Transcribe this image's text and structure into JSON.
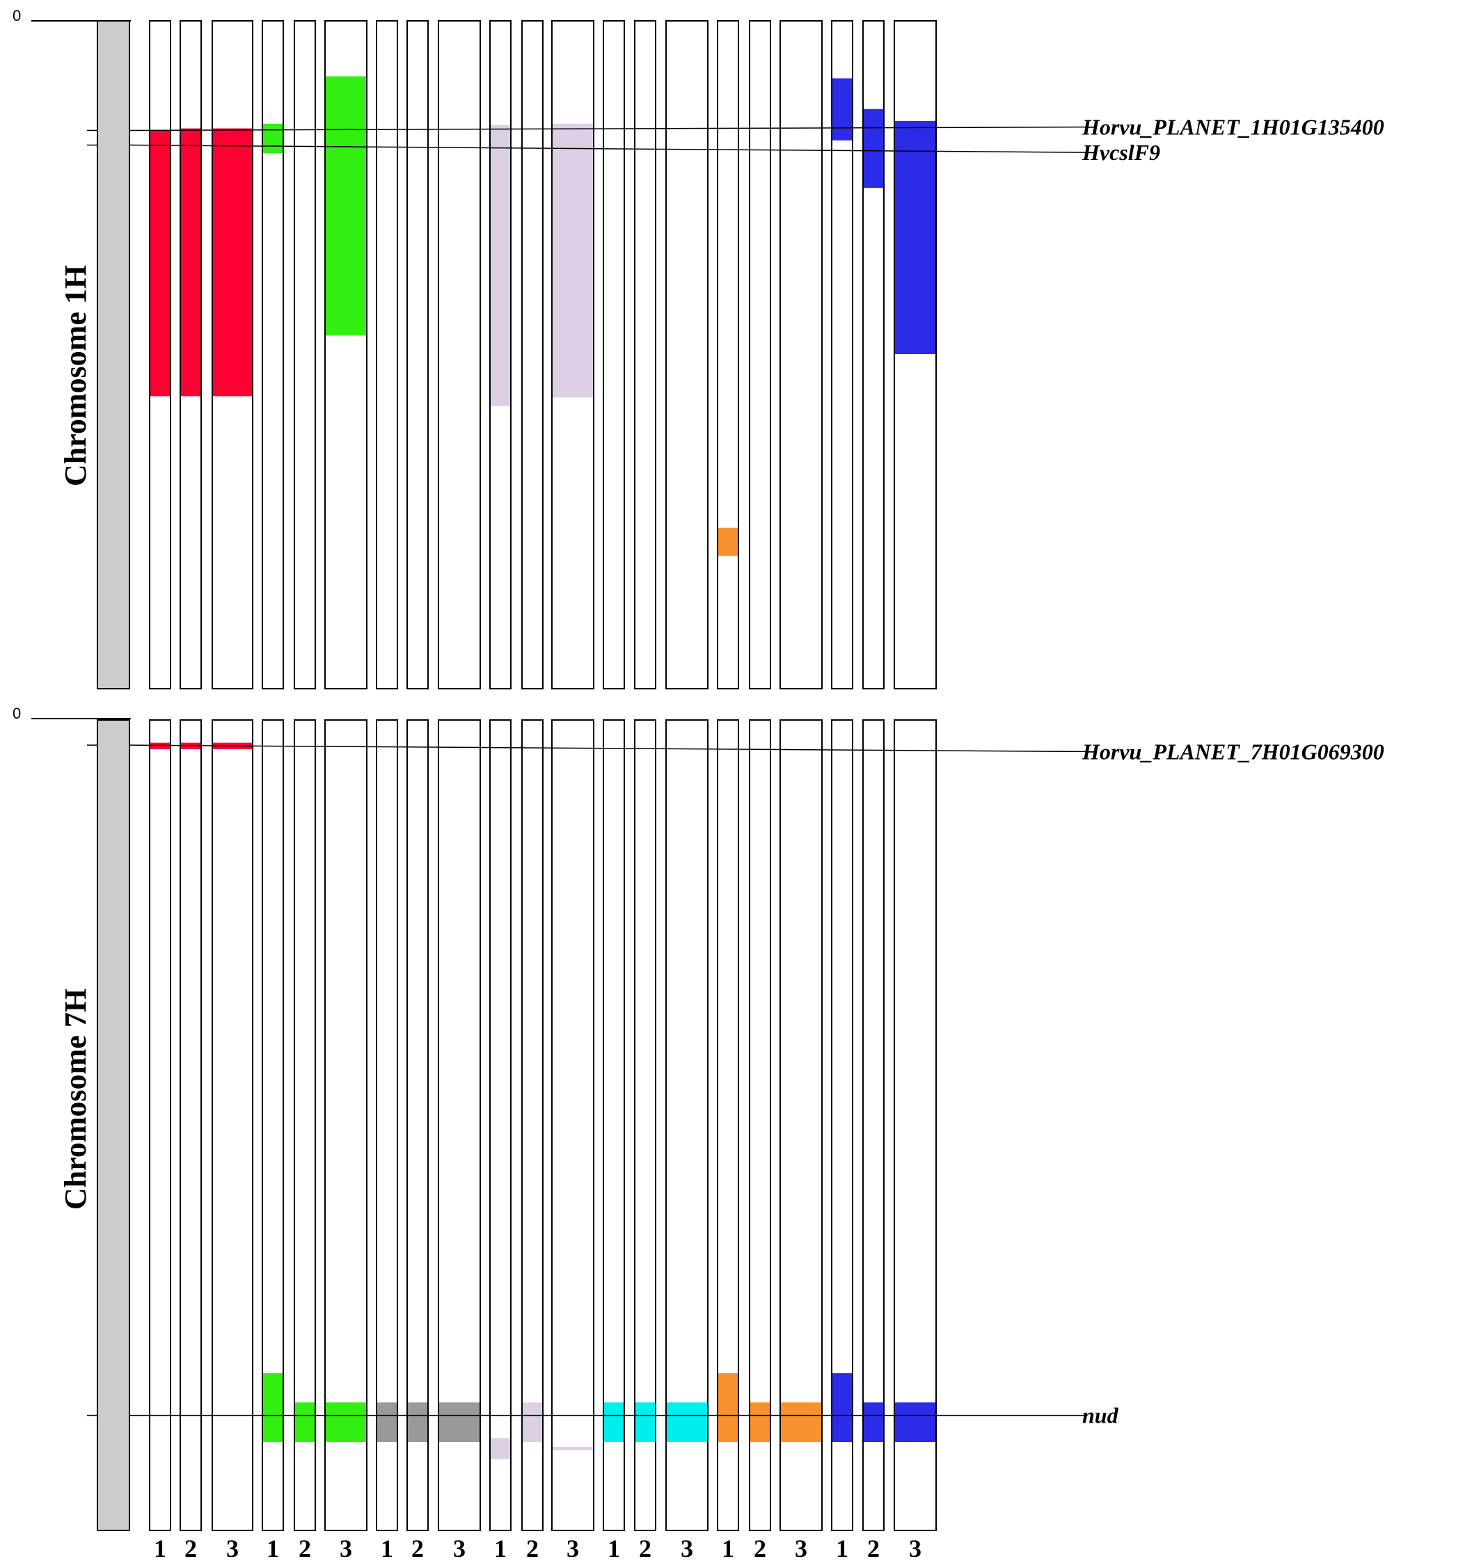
{
  "colors": {
    "red": "#ff0033",
    "green": "#33ee11",
    "lavender": "#dccfe6",
    "gray": "#999999",
    "cyan": "#00eeee",
    "orange": "#f7922f",
    "blue": "#2c2ce8",
    "chromosome": "#cccccc",
    "line": "#000000"
  },
  "column_labels": [
    "1",
    "2",
    "3",
    "1",
    "2",
    "3",
    "1",
    "2",
    "3",
    "1",
    "2",
    "3",
    "1",
    "2",
    "3",
    "1",
    "2",
    "3",
    "1",
    "2",
    "3"
  ],
  "panels": [
    {
      "id": "1H",
      "title": "Chromosome  1H",
      "zero_label": "0",
      "markers": [
        {
          "id": "m1",
          "label": "Horvu_PLANET_1H01G135400",
          "pos": 0.164,
          "end_pos": 0.159
        },
        {
          "id": "m2",
          "label": "HvcslF9",
          "pos": 0.186,
          "end_pos": 0.197
        }
      ],
      "segments": [
        {
          "col": 0,
          "start": 0.164,
          "end": 0.562,
          "color": "red"
        },
        {
          "col": 1,
          "start": 0.161,
          "end": 0.562,
          "color": "red"
        },
        {
          "col": 2,
          "start": 0.161,
          "end": 0.562,
          "color": "red"
        },
        {
          "col": 3,
          "start": 0.154,
          "end": 0.198,
          "color": "green"
        },
        {
          "col": 5,
          "start": 0.083,
          "end": 0.471,
          "color": "green"
        },
        {
          "col": 9,
          "start": 0.156,
          "end": 0.577,
          "color": "lavender"
        },
        {
          "col": 11,
          "start": 0.154,
          "end": 0.564,
          "color": "lavender"
        },
        {
          "col": 15,
          "start": 0.759,
          "end": 0.801,
          "color": "orange"
        },
        {
          "col": 18,
          "start": 0.086,
          "end": 0.179,
          "color": "blue"
        },
        {
          "col": 19,
          "start": 0.132,
          "end": 0.25,
          "color": "blue"
        },
        {
          "col": 20,
          "start": 0.15,
          "end": 0.499,
          "color": "blue"
        }
      ]
    },
    {
      "id": "7H",
      "title": "Chromosome  7H",
      "zero_label": "0",
      "markers": [
        {
          "id": "m3",
          "label": "Horvu_PLANET_7H01G069300",
          "pos": 0.031,
          "end_pos": 0.039
        },
        {
          "id": "m4",
          "label": "nud",
          "pos": 0.858,
          "end_pos": 0.858
        }
      ],
      "segments": [
        {
          "col": 0,
          "start": 0.028,
          "end": 0.036,
          "color": "red"
        },
        {
          "col": 1,
          "start": 0.028,
          "end": 0.036,
          "color": "red"
        },
        {
          "col": 2,
          "start": 0.028,
          "end": 0.036,
          "color": "red"
        },
        {
          "col": 3,
          "start": 0.806,
          "end": 0.891,
          "color": "green"
        },
        {
          "col": 4,
          "start": 0.842,
          "end": 0.891,
          "color": "green"
        },
        {
          "col": 5,
          "start": 0.842,
          "end": 0.891,
          "color": "green"
        },
        {
          "col": 6,
          "start": 0.842,
          "end": 0.891,
          "color": "gray"
        },
        {
          "col": 7,
          "start": 0.842,
          "end": 0.891,
          "color": "gray"
        },
        {
          "col": 8,
          "start": 0.842,
          "end": 0.891,
          "color": "gray"
        },
        {
          "col": 9,
          "start": 0.886,
          "end": 0.912,
          "color": "lavender"
        },
        {
          "col": 10,
          "start": 0.842,
          "end": 0.891,
          "color": "lavender"
        },
        {
          "col": 11,
          "start": 0.897,
          "end": 0.901,
          "color": "lavender"
        },
        {
          "col": 12,
          "start": 0.842,
          "end": 0.891,
          "color": "cyan"
        },
        {
          "col": 13,
          "start": 0.842,
          "end": 0.891,
          "color": "cyan"
        },
        {
          "col": 14,
          "start": 0.842,
          "end": 0.891,
          "color": "cyan"
        },
        {
          "col": 15,
          "start": 0.806,
          "end": 0.891,
          "color": "orange"
        },
        {
          "col": 16,
          "start": 0.842,
          "end": 0.891,
          "color": "orange"
        },
        {
          "col": 17,
          "start": 0.842,
          "end": 0.891,
          "color": "orange"
        },
        {
          "col": 18,
          "start": 0.806,
          "end": 0.891,
          "color": "blue"
        },
        {
          "col": 19,
          "start": 0.842,
          "end": 0.891,
          "color": "blue"
        },
        {
          "col": 20,
          "start": 0.842,
          "end": 0.891,
          "color": "blue"
        }
      ]
    }
  ]
}
